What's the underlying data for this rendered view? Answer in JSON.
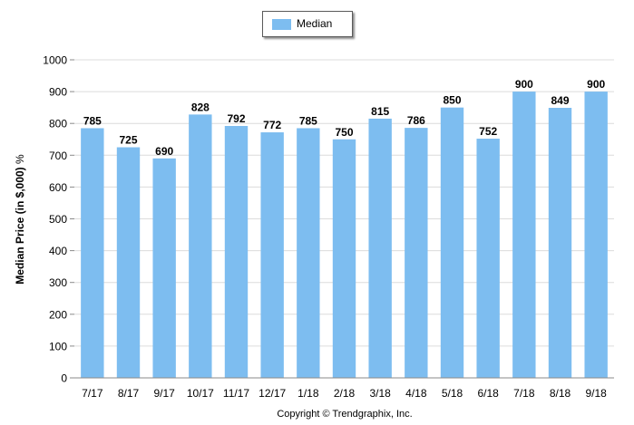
{
  "chart_data": {
    "type": "bar",
    "categories": [
      "7/17",
      "8/17",
      "9/17",
      "10/17",
      "11/17",
      "12/17",
      "1/18",
      "2/18",
      "3/18",
      "4/18",
      "5/18",
      "6/18",
      "7/18",
      "8/18",
      "9/18"
    ],
    "series": [
      {
        "name": "Median",
        "values": [
          785,
          725,
          690,
          828,
          792,
          772,
          785,
          750,
          815,
          786,
          850,
          752,
          900,
          849,
          900
        ]
      }
    ],
    "value_labels": [
      "785",
      "725",
      "690",
      "828",
      "792",
      "772",
      "785",
      "750",
      "815",
      "786",
      "850",
      "752",
      "900",
      "849",
      "900"
    ],
    "ylabel": "Median Price (in $,000)",
    "ylabel_unit": "%",
    "ylim": [
      0,
      1000
    ],
    "yticks": [
      0,
      100,
      200,
      300,
      400,
      500,
      600,
      700,
      800,
      900,
      1000
    ],
    "grid": true,
    "legend_placement": "top-center",
    "bar_color": "#7dbdf0"
  },
  "legend": {
    "label": "Median"
  },
  "footer": {
    "text": "Copyright © Trendgraphix, Inc."
  }
}
